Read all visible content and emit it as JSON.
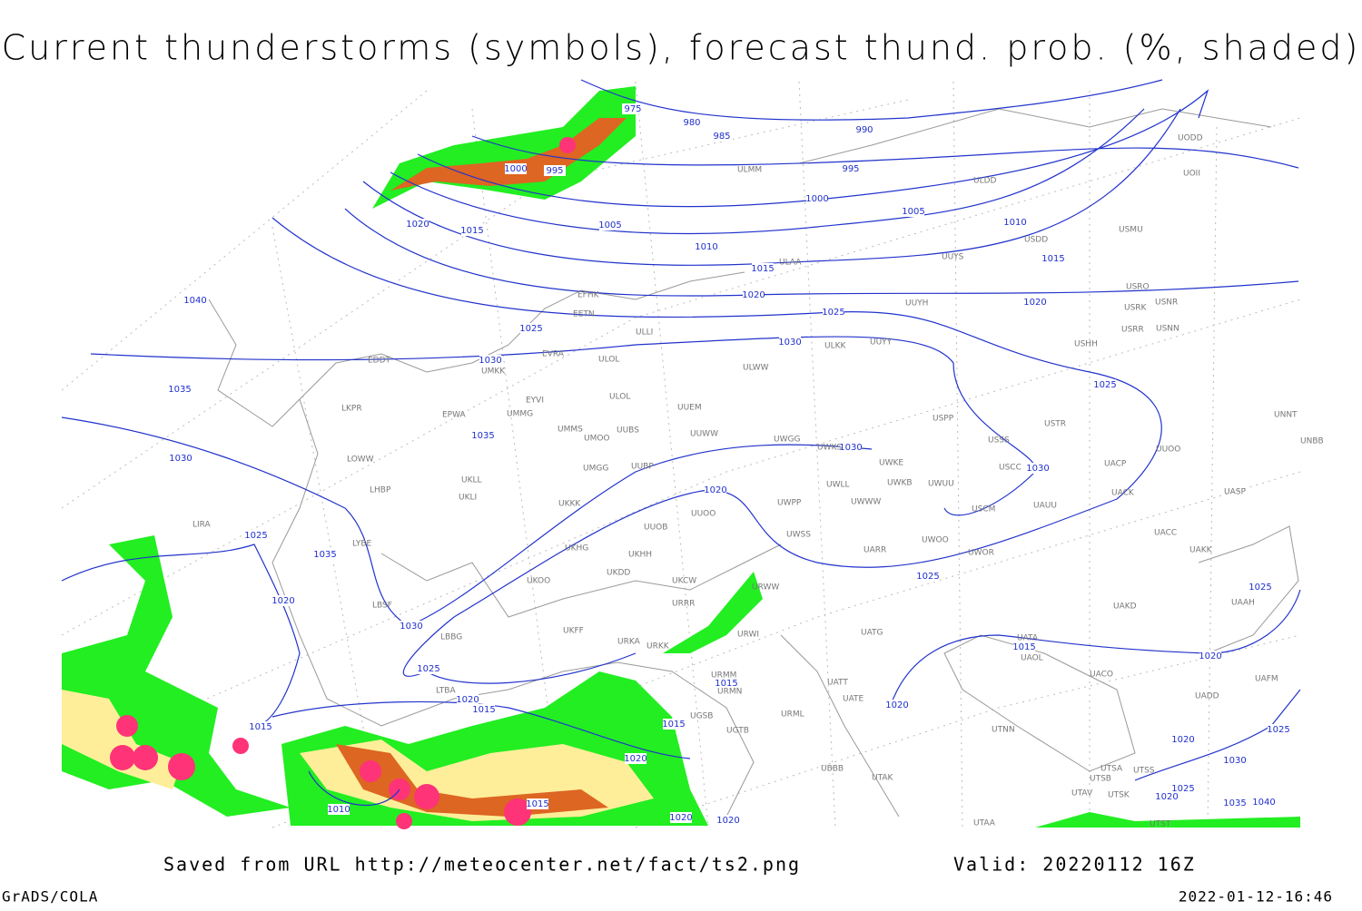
{
  "header": {
    "title": "Current thunderstorms (symbols), forecast thund. prob. (%, shaded)"
  },
  "footer": {
    "source": "Saved from URL http://meteocenter.net/fact/ts2.png",
    "valid": "Valid: 20220112 16Z",
    "software": "GrADS/COLA",
    "timestamp": "2022-01-12-16:46"
  },
  "map": {
    "isobar_labels": [
      "975",
      "980",
      "985",
      "990",
      "995",
      "1000",
      "995",
      "1000",
      "1005",
      "1005",
      "1010",
      "1010",
      "1015",
      "1015",
      "1020",
      "1015",
      "1020",
      "1020",
      "1025",
      "1025",
      "1030",
      "1030",
      "1040",
      "1035",
      "1035",
      "1030",
      "1030",
      "1030",
      "1025",
      "1020",
      "1025",
      "1035",
      "1020",
      "1025",
      "1025",
      "1030",
      "1025",
      "1015",
      "1015",
      "1020",
      "1015",
      "1020",
      "1020",
      "1015",
      "1015",
      "1025",
      "1020",
      "1020",
      "1030",
      "1010",
      "1015",
      "1020",
      "1020",
      "1025",
      "1020",
      "1035",
      "1040"
    ],
    "station_labels": [
      "ULMM",
      "ULDD",
      "UODD",
      "UOII",
      "USDD",
      "USMU",
      "ULAA",
      "UUYS",
      "USRO",
      "USRK",
      "USNR",
      "USRR",
      "USNN",
      "USHH",
      "EFHK",
      "EETN",
      "ULLI",
      "UUYH",
      "ULKK",
      "UUYY",
      "EVRA",
      "ULOL",
      "EDDT",
      "UMKK",
      "ULWW",
      "ULOL",
      "EYVI",
      "UUEM",
      "LKPR",
      "EPWA",
      "UMMG",
      "USPP",
      "USTR",
      "UNNT",
      "UMMS",
      "UMOO",
      "UUBS",
      "UUWW",
      "UWGG",
      "UWKS",
      "USSS",
      "UNBB",
      "LOWW",
      "UWKE",
      "UMGG",
      "UUBP",
      "UUOO",
      "USCC",
      "UACP",
      "UKLL",
      "UWLL",
      "UWKB",
      "UWUU",
      "LHBP",
      "UKLI",
      "UWWW",
      "UWPP",
      "UACK",
      "UASP",
      "UKKK",
      "USCM",
      "UAUU",
      "UUOO",
      "LIRA",
      "UUOB",
      "UWSS",
      "UACC",
      "LYBE",
      "UKHG",
      "UKHH",
      "UARR",
      "UWOO",
      "UWOR",
      "UAKK",
      "UKDD",
      "UKOO",
      "URWW",
      "LBSF",
      "UKCW",
      "URRR",
      "UAKD",
      "UAAH",
      "LBBG",
      "UKFF",
      "URKA",
      "URKK",
      "URWI",
      "UATG",
      "UATA",
      "UAOL",
      "UACO",
      "UATT",
      "URMM",
      "UATE",
      "URMN",
      "UADD",
      "UAFM",
      "LTBA",
      "UGSB",
      "UGTB",
      "URML",
      "UTNN",
      "UBBB",
      "UTAK",
      "UTSB",
      "UTSA",
      "UTSS",
      "UTAV",
      "UTSK",
      "UTAA",
      "UTST"
    ]
  }
}
